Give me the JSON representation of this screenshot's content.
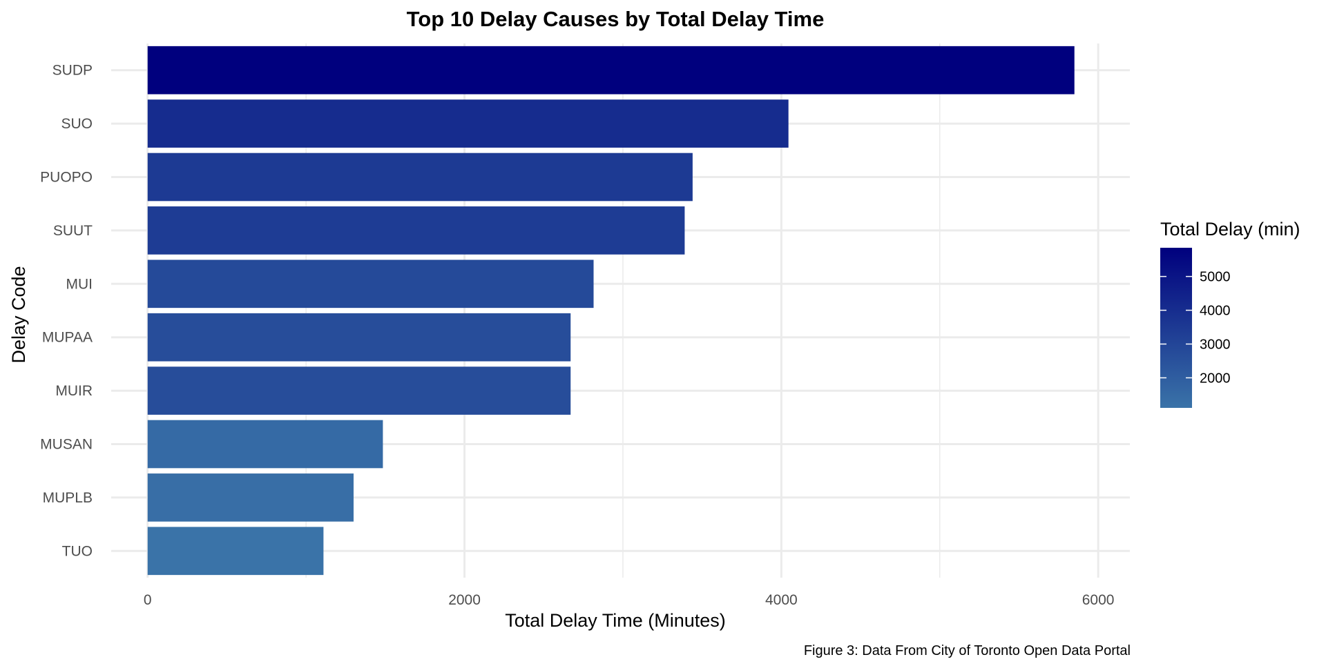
{
  "chart_data": {
    "type": "bar",
    "orientation": "horizontal",
    "title": "Top 10 Delay Causes by Total Delay Time",
    "xlabel": "Total Delay Time (Minutes)",
    "ylabel": "Delay Code",
    "caption": "Figure 3: Data From City of Toronto Open Data Portal",
    "categories": [
      "SUDP",
      "SUO",
      "PUOPO",
      "SUUT",
      "MUI",
      "MUPAA",
      "MUIR",
      "MUSAN",
      "MUPLB",
      "TUO"
    ],
    "values": [
      5850,
      4045,
      3440,
      3390,
      2815,
      2670,
      2670,
      1485,
      1300,
      1110
    ],
    "xlim": [
      -230,
      6200
    ],
    "x_ticks": [
      0,
      2000,
      4000,
      6000
    ],
    "x_tick_labels": [
      "0",
      "2000",
      "4000",
      "6000"
    ],
    "grid": true,
    "legend": {
      "title": "Total Delay (min)",
      "placement": "right",
      "min": 1110,
      "max": 5850,
      "ticks": [
        2000,
        3000,
        4000,
        5000
      ],
      "tick_labels": [
        "2000",
        "3000",
        "4000",
        "5000"
      ],
      "color_low": "#3A73A8",
      "color_high": "#00007E"
    },
    "colors": {
      "grid": "#EBEBEB",
      "text": "#000000",
      "tick_text": "#4D4D4D"
    }
  }
}
